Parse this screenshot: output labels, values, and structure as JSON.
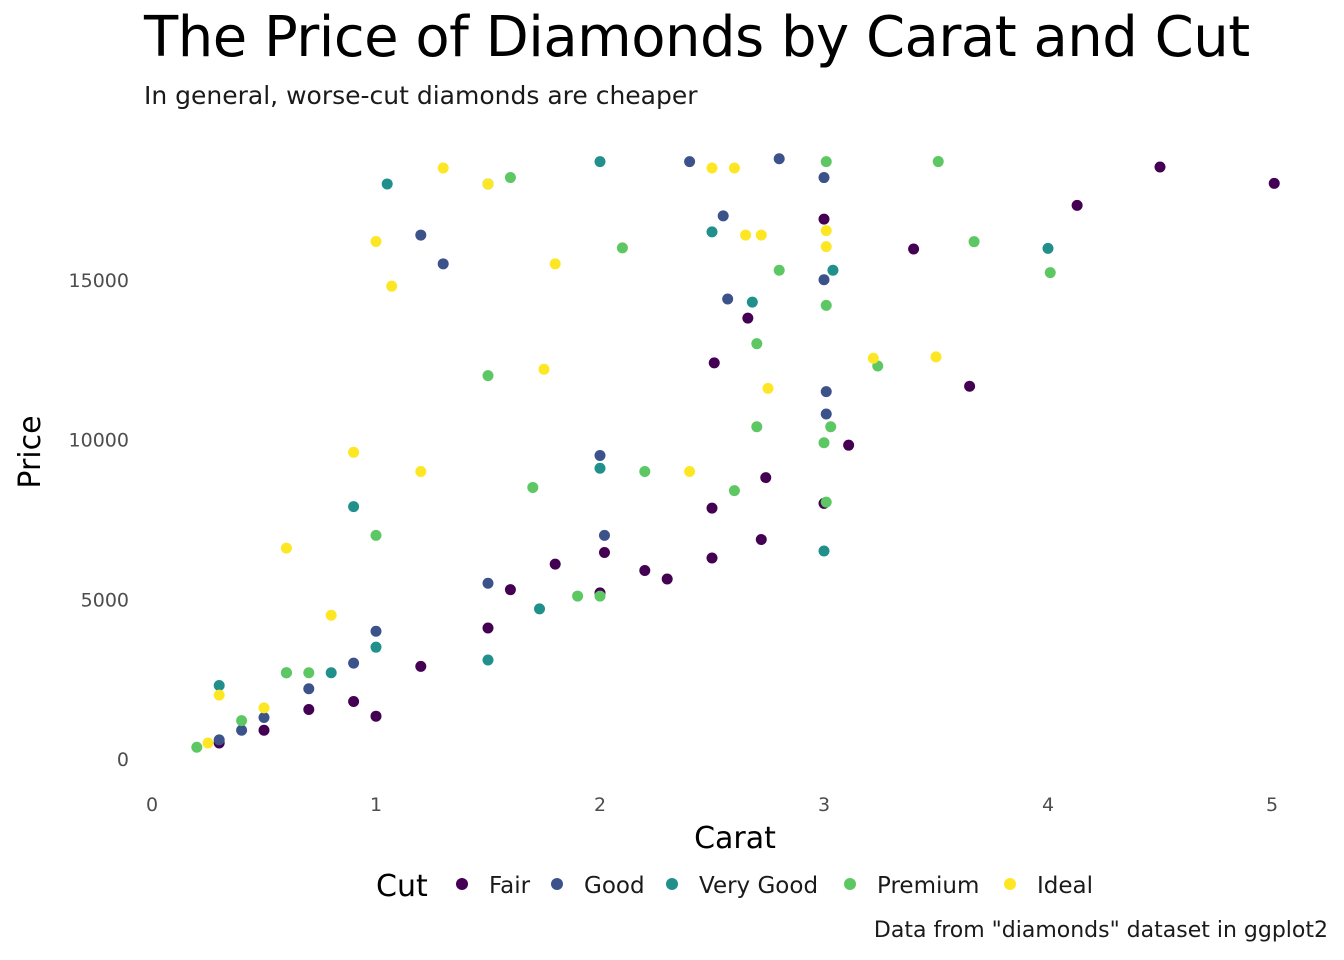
{
  "title": "The Price of Diamonds by Carat and Cut",
  "subtitle": "In general, worse-cut diamonds are cheaper",
  "caption": "Data from \"diamonds\" dataset in ggplot2",
  "chart_data": {
    "type": "scatter",
    "title": "The Price of Diamonds by Carat and Cut",
    "subtitle": "In general, worse-cut diamonds are cheaper",
    "xlabel": "Carat",
    "ylabel": "Price",
    "xlim": [
      0,
      5
    ],
    "ylim": [
      0,
      19000
    ],
    "x_ticks": [
      0,
      1,
      2,
      3,
      4,
      5
    ],
    "y_ticks": [
      0,
      5000,
      10000,
      15000
    ],
    "grid": false,
    "legend": {
      "title": "Cut",
      "placement": "bottom"
    },
    "series": [
      {
        "name": "Fair",
        "color": "#440154",
        "points": [
          [
            5.01,
            18018
          ],
          [
            4.5,
            18531
          ],
          [
            4.13,
            17329
          ],
          [
            3.4,
            15964
          ],
          [
            3.65,
            11668
          ],
          [
            3.11,
            9823
          ],
          [
            2.74,
            8807
          ],
          [
            2.72,
            6870
          ],
          [
            2.5,
            6293
          ],
          [
            2.5,
            7854
          ],
          [
            2.02,
            6464
          ],
          [
            2.3,
            5634
          ],
          [
            2.0,
            5200
          ],
          [
            1.5,
            4100
          ],
          [
            1.2,
            2900
          ],
          [
            1.0,
            1340
          ],
          [
            0.7,
            1550
          ],
          [
            0.9,
            1800
          ],
          [
            0.5,
            900
          ],
          [
            0.3,
            500
          ],
          [
            2.51,
            12400
          ],
          [
            2.66,
            13800
          ],
          [
            3.0,
            8000
          ],
          [
            3.0,
            16900
          ],
          [
            1.8,
            6100
          ],
          [
            1.6,
            5300
          ],
          [
            2.2,
            5900
          ]
        ]
      },
      {
        "name": "Good",
        "color": "#3b528b",
        "points": [
          [
            2.8,
            18788
          ],
          [
            3.0,
            18200
          ],
          [
            3.0,
            15000
          ],
          [
            3.01,
            11500
          ],
          [
            3.01,
            10800
          ],
          [
            2.57,
            14400
          ],
          [
            2.55,
            17000
          ],
          [
            2.02,
            7000
          ],
          [
            2.0,
            9500
          ],
          [
            1.5,
            5500
          ],
          [
            1.0,
            4000
          ],
          [
            0.7,
            2200
          ],
          [
            0.5,
            1300
          ],
          [
            0.3,
            600
          ],
          [
            1.2,
            16400
          ],
          [
            1.3,
            15500
          ],
          [
            2.4,
            18700
          ],
          [
            0.4,
            900
          ],
          [
            0.9,
            3000
          ]
        ]
      },
      {
        "name": "Very Good",
        "color": "#21908c",
        "points": [
          [
            4.0,
            15984
          ],
          [
            3.04,
            15300
          ],
          [
            3.0,
            6512
          ],
          [
            2.68,
            14300
          ],
          [
            2.5,
            16500
          ],
          [
            2.0,
            9100
          ],
          [
            1.5,
            3100
          ],
          [
            1.5,
            18000
          ],
          [
            1.0,
            3500
          ],
          [
            0.9,
            7900
          ],
          [
            0.6,
            2700
          ],
          [
            0.3,
            2300
          ],
          [
            1.05,
            18000
          ],
          [
            2.0,
            18700
          ],
          [
            1.73,
            4700
          ],
          [
            0.8,
            2700
          ]
        ]
      },
      {
        "name": "Premium",
        "color": "#5dc863",
        "points": [
          [
            3.51,
            18701
          ],
          [
            4.01,
            15223
          ],
          [
            3.67,
            16193
          ],
          [
            3.24,
            12300
          ],
          [
            3.01,
            18700
          ],
          [
            3.01,
            14200
          ],
          [
            3.0,
            9900
          ],
          [
            3.01,
            8040
          ],
          [
            2.8,
            15300
          ],
          [
            2.7,
            13000
          ],
          [
            2.7,
            10400
          ],
          [
            2.6,
            8400
          ],
          [
            2.0,
            5100
          ],
          [
            1.7,
            8500
          ],
          [
            1.5,
            12000
          ],
          [
            1.0,
            7000
          ],
          [
            0.7,
            2700
          ],
          [
            0.4,
            1200
          ],
          [
            0.2,
            367
          ],
          [
            2.2,
            9000
          ],
          [
            1.9,
            5100
          ],
          [
            2.1,
            16000
          ],
          [
            1.6,
            18200
          ],
          [
            0.6,
            2700
          ],
          [
            3.03,
            10400
          ]
        ]
      },
      {
        "name": "Ideal",
        "color": "#fde725",
        "points": [
          [
            3.5,
            12587
          ],
          [
            3.22,
            12545
          ],
          [
            3.01,
            16538
          ],
          [
            3.01,
            16037
          ],
          [
            2.75,
            11600
          ],
          [
            2.72,
            16400
          ],
          [
            2.5,
            18500
          ],
          [
            2.6,
            18500
          ],
          [
            2.4,
            9000
          ],
          [
            1.5,
            18000
          ],
          [
            1.0,
            16200
          ],
          [
            0.9,
            9600
          ],
          [
            0.8,
            4500
          ],
          [
            0.6,
            6600
          ],
          [
            0.3,
            2000
          ],
          [
            1.3,
            18500
          ],
          [
            1.8,
            15500
          ],
          [
            1.2,
            9000
          ],
          [
            0.5,
            1600
          ],
          [
            0.25,
            500
          ],
          [
            1.07,
            14800
          ],
          [
            1.75,
            12200
          ],
          [
            2.65,
            16400
          ]
        ]
      }
    ]
  }
}
